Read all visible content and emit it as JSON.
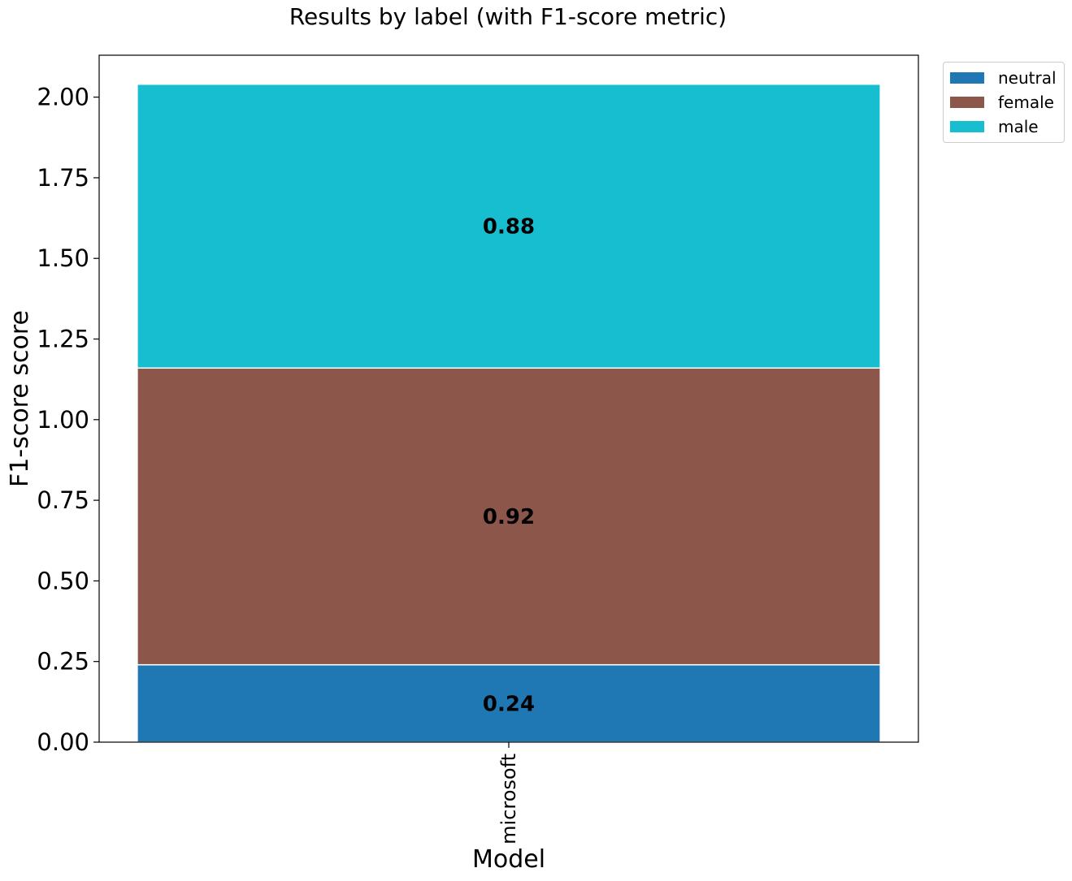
{
  "chart_data": {
    "type": "bar",
    "stacked": true,
    "title": "Results by label (with F1-score metric)",
    "xlabel": "Model",
    "ylabel": "F1-score score",
    "categories": [
      "microsoft"
    ],
    "ylim": [
      0,
      2.13
    ],
    "yticks": [
      0.0,
      0.25,
      0.5,
      0.75,
      1.0,
      1.25,
      1.5,
      1.75,
      2.0
    ],
    "ytick_labels": [
      "0.00",
      "0.25",
      "0.50",
      "0.75",
      "1.00",
      "1.25",
      "1.50",
      "1.75",
      "2.00"
    ],
    "series": [
      {
        "name": "neutral",
        "values": [
          0.24
        ],
        "label": "0.24",
        "color": "#1f77b4"
      },
      {
        "name": "female",
        "values": [
          0.92
        ],
        "label": "0.92",
        "color": "#8c564b"
      },
      {
        "name": "male",
        "values": [
          0.88
        ],
        "label": "0.88",
        "color": "#17becf"
      }
    ],
    "legend": "upper right outside",
    "grid": false
  }
}
